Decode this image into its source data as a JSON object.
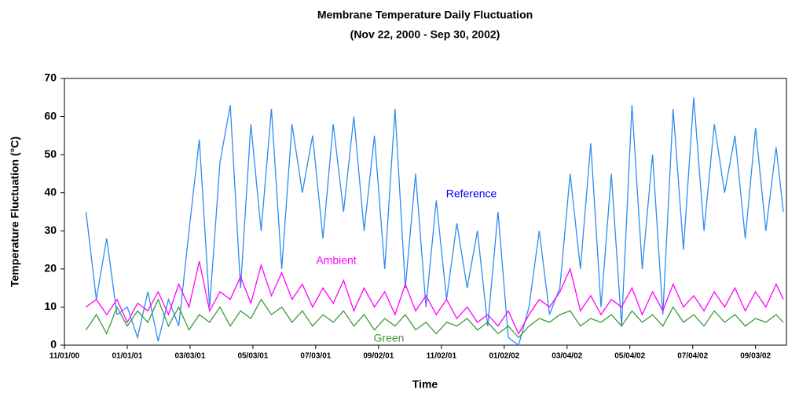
{
  "chart_data": {
    "type": "line",
    "title": "Membrane Temperature Daily Fluctuation",
    "subtitle": "(Nov 22, 2000 - Sep 30, 2002)",
    "x_label": "Time",
    "y_label": "Temperature Fluctuation (°C)",
    "x": [
      "2000-11-22",
      "2000-12-02",
      "2000-12-12",
      "2000-12-22",
      "2001-01-01",
      "2001-01-11",
      "2001-01-21",
      "2001-01-31",
      "2001-02-10",
      "2001-02-20",
      "2001-03-02",
      "2001-03-12",
      "2001-03-22",
      "2001-04-01",
      "2001-04-11",
      "2001-04-21",
      "2001-05-01",
      "2001-05-11",
      "2001-05-21",
      "2001-05-31",
      "2001-06-10",
      "2001-06-20",
      "2001-06-30",
      "2001-07-10",
      "2001-07-20",
      "2001-07-30",
      "2001-08-09",
      "2001-08-19",
      "2001-08-29",
      "2001-09-08",
      "2001-09-18",
      "2001-09-28",
      "2001-10-08",
      "2001-10-18",
      "2001-10-28",
      "2001-11-07",
      "2001-11-17",
      "2001-11-27",
      "2001-12-07",
      "2001-12-17",
      "2001-12-27",
      "2002-01-06",
      "2002-01-16",
      "2002-01-26",
      "2002-02-05",
      "2002-02-15",
      "2002-02-25",
      "2002-03-07",
      "2002-03-17",
      "2002-03-27",
      "2002-04-06",
      "2002-04-16",
      "2002-04-26",
      "2002-05-06",
      "2002-05-16",
      "2002-05-26",
      "2002-06-05",
      "2002-06-15",
      "2002-06-25",
      "2002-07-05",
      "2002-07-15",
      "2002-07-25",
      "2002-08-04",
      "2002-08-14",
      "2002-08-24",
      "2002-09-03",
      "2002-09-13",
      "2002-09-23",
      "2002-09-30"
    ],
    "series": [
      {
        "name": "Reference",
        "color": "#2e8bf0",
        "label_color": "#0000ff",
        "values": [
          35,
          12,
          28,
          8,
          10,
          2,
          14,
          1,
          12,
          5,
          30,
          54,
          10,
          48,
          63,
          15,
          58,
          30,
          62,
          20,
          58,
          40,
          55,
          28,
          58,
          35,
          60,
          30,
          55,
          20,
          62,
          15,
          45,
          10,
          38,
          12,
          32,
          15,
          30,
          5,
          35,
          2,
          0,
          10,
          30,
          8,
          15,
          45,
          20,
          53,
          10,
          45,
          5,
          63,
          20,
          50,
          8,
          62,
          25,
          65,
          30,
          58,
          40,
          55,
          28,
          57,
          30,
          52,
          35
        ]
      },
      {
        "name": "Ambient",
        "color": "#ff00ff",
        "label_color": "#ff00ff",
        "values": [
          10,
          12,
          8,
          12,
          6,
          11,
          9,
          14,
          8,
          16,
          10,
          22,
          9,
          14,
          12,
          18,
          11,
          21,
          13,
          19,
          12,
          16,
          10,
          15,
          11,
          17,
          9,
          15,
          10,
          14,
          8,
          16,
          9,
          13,
          8,
          12,
          7,
          10,
          6,
          8,
          5,
          9,
          3,
          8,
          12,
          10,
          14,
          20,
          9,
          13,
          8,
          12,
          10,
          15,
          8,
          14,
          9,
          16,
          10,
          13,
          9,
          14,
          10,
          15,
          9,
          14,
          10,
          16,
          12
        ]
      },
      {
        "name": "Green",
        "color": "#3a9a3a",
        "label_color": "#3a9a3a",
        "values": [
          4,
          8,
          3,
          10,
          5,
          9,
          6,
          12,
          5,
          10,
          4,
          8,
          6,
          10,
          5,
          9,
          7,
          12,
          8,
          10,
          6,
          9,
          5,
          8,
          6,
          9,
          5,
          8,
          4,
          7,
          5,
          8,
          4,
          6,
          3,
          6,
          5,
          7,
          4,
          6,
          3,
          5,
          2,
          5,
          7,
          6,
          8,
          9,
          5,
          7,
          6,
          8,
          5,
          9,
          6,
          8,
          5,
          10,
          6,
          8,
          5,
          9,
          6,
          8,
          5,
          7,
          6,
          8,
          6
        ]
      }
    ],
    "xlim": [
      "2000-11-01",
      "2002-10-03"
    ],
    "xticks": [
      {
        "value": "2000-11-01",
        "label": "11/01/00"
      },
      {
        "value": "2001-01-01",
        "label": "01/01/01"
      },
      {
        "value": "2001-03-03",
        "label": "03/03/01"
      },
      {
        "value": "2001-05-03",
        "label": "05/03/01"
      },
      {
        "value": "2001-07-03",
        "label": "07/03/01"
      },
      {
        "value": "2001-09-02",
        "label": "09/02/01"
      },
      {
        "value": "2001-11-02",
        "label": "11/02/01"
      },
      {
        "value": "2002-01-02",
        "label": "01/02/02"
      },
      {
        "value": "2002-03-04",
        "label": "03/04/02"
      },
      {
        "value": "2002-05-04",
        "label": "05/04/02"
      },
      {
        "value": "2002-07-04",
        "label": "07/04/02"
      },
      {
        "value": "2002-09-03",
        "label": "09/03/02"
      }
    ],
    "ylim": [
      0,
      70
    ],
    "yticks": [
      0,
      10,
      20,
      30,
      40,
      50,
      60,
      70
    ]
  }
}
